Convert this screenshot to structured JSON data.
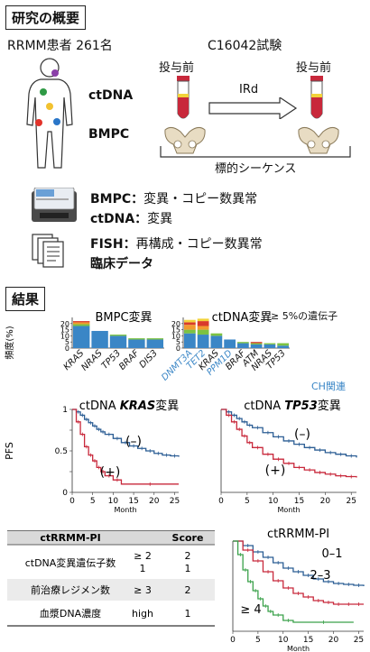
{
  "overview": {
    "heading": "研究の概要",
    "patients": "RRMM患者 261名",
    "trial": "C16042試験",
    "pre_left": "投与前",
    "pre_right": "投与前",
    "ctdna": "ctDNA",
    "bmpc": "BMPC",
    "treatment": "IRd",
    "sequencing": "標的シーケンス",
    "lines": [
      {
        "label": "BMPC：",
        "text": "変異・コピー数異常"
      },
      {
        "label": "ctDNA：",
        "text": "変異"
      },
      {
        "label": "FISH：",
        "text": "再構成・コピー数異常"
      },
      {
        "label": "臨床データ",
        "text": ""
      }
    ]
  },
  "results": {
    "heading": "結果",
    "freq_ylabel": "頻度(%)",
    "note": "≥ 5%の遺伝子",
    "ch_label": "CH関連",
    "colors": {
      "blue": "#3a86c6",
      "green": "#7cc242",
      "orange": "#f29a2e",
      "red": "#d93a2b",
      "yellow": "#f2d33a",
      "ch": "#3a86c6"
    },
    "bmpc_chart": {
      "type": "bar",
      "title": "BMPC変異",
      "categories": [
        "KRAS",
        "NRAS",
        "TP53",
        "BRAF",
        "DIS3"
      ],
      "ylim": [
        0,
        25
      ],
      "yticks": [
        0,
        5,
        10,
        15,
        20
      ],
      "stacks": [
        [
          18,
          1.5,
          1.5,
          1
        ],
        [
          14,
          0,
          0,
          0
        ],
        [
          10,
          1,
          0,
          0
        ],
        [
          7,
          1,
          0,
          0
        ],
        [
          7,
          1,
          0,
          0
        ]
      ]
    },
    "ctdna_chart": {
      "type": "bar",
      "title": "ctDNA変異",
      "categories": [
        "DNMT3A",
        "TET2",
        "KRAS",
        "PPM1D",
        "BRAF",
        "ATM",
        "NRAS",
        "TP53"
      ],
      "ch_flags": [
        true,
        true,
        false,
        true,
        false,
        false,
        false,
        false
      ],
      "ylim": [
        0,
        25
      ],
      "yticks": [
        0,
        5,
        10,
        15,
        20
      ],
      "stacks": [
        [
          12,
          3,
          4,
          2,
          2
        ],
        [
          11,
          4,
          3,
          4,
          2
        ],
        [
          10,
          2,
          0,
          0,
          0
        ],
        [
          7,
          0,
          0,
          0,
          0
        ],
        [
          4,
          1,
          0,
          0,
          0
        ],
        [
          3,
          1,
          0,
          1,
          0
        ],
        [
          3,
          1,
          0,
          0,
          0
        ],
        [
          2,
          2,
          0,
          0,
          0
        ]
      ]
    },
    "kras_km": {
      "type": "line",
      "title_prefix": "ctDNA ",
      "title_gene": "KRAS",
      "title_suffix": "変異",
      "ylabel": "PFS",
      "xlabel": "Month",
      "xticks": [
        0,
        5,
        10,
        15,
        20,
        25
      ],
      "yticks": [
        0,
        0.25,
        0.5,
        0.75,
        1
      ],
      "ytick_labels": [
        "0",
        "",
        "0.5",
        "",
        "1"
      ],
      "series": [
        {
          "label": "(–)",
          "color": "#2b5d94",
          "x": [
            0,
            1,
            2,
            3,
            4,
            5,
            6,
            7,
            8,
            10,
            12,
            14,
            16,
            18,
            20,
            22,
            24,
            26
          ],
          "y": [
            1,
            0.97,
            0.93,
            0.88,
            0.84,
            0.8,
            0.76,
            0.73,
            0.7,
            0.65,
            0.6,
            0.56,
            0.53,
            0.5,
            0.47,
            0.45,
            0.44,
            0.43
          ]
        },
        {
          "label": "(+)",
          "color": "#c8283b",
          "x": [
            0,
            1,
            2,
            3,
            4,
            5,
            6,
            7,
            8,
            10,
            12,
            26
          ],
          "y": [
            1,
            0.85,
            0.7,
            0.55,
            0.45,
            0.38,
            0.3,
            0.25,
            0.2,
            0.15,
            0.1,
            0.1
          ]
        }
      ]
    },
    "tp53_km": {
      "type": "line",
      "title_prefix": "ctDNA ",
      "title_gene": "TP53",
      "title_suffix": "変異",
      "xlabel": "Month",
      "xticks": [
        0,
        5,
        10,
        15,
        20,
        25
      ],
      "series": [
        {
          "label": "(–)",
          "color": "#2b5d94",
          "x": [
            0,
            1,
            2,
            3,
            4,
            5,
            6,
            8,
            10,
            12,
            14,
            16,
            18,
            20,
            22,
            24,
            26
          ],
          "y": [
            1,
            0.97,
            0.93,
            0.89,
            0.85,
            0.81,
            0.78,
            0.72,
            0.67,
            0.62,
            0.58,
            0.54,
            0.51,
            0.48,
            0.46,
            0.44,
            0.42
          ]
        },
        {
          "label": "(+)",
          "color": "#c8283b",
          "x": [
            0,
            1,
            2,
            3,
            4,
            5,
            6,
            8,
            10,
            12,
            14,
            16,
            18,
            20,
            22,
            24,
            26
          ],
          "y": [
            1,
            0.93,
            0.85,
            0.76,
            0.68,
            0.6,
            0.54,
            0.46,
            0.4,
            0.35,
            0.3,
            0.27,
            0.24,
            0.22,
            0.2,
            0.19,
            0.18
          ]
        }
      ]
    },
    "pi_km": {
      "type": "line",
      "title": "ctRRMM-PI",
      "xlabel": "Month",
      "xticks": [
        0,
        5,
        10,
        15,
        20,
        25
      ],
      "series": [
        {
          "label": "0–1",
          "color": "#2b5d94",
          "x": [
            0,
            2,
            4,
            6,
            8,
            10,
            12,
            14,
            16,
            18,
            20,
            22,
            24,
            26
          ],
          "y": [
            1,
            0.95,
            0.88,
            0.82,
            0.76,
            0.7,
            0.66,
            0.62,
            0.58,
            0.55,
            0.53,
            0.52,
            0.51,
            0.5
          ]
        },
        {
          "label": "2–3",
          "color": "#c8283b",
          "x": [
            0,
            2,
            4,
            6,
            8,
            10,
            12,
            14,
            16,
            18,
            20,
            22,
            24,
            26
          ],
          "y": [
            1,
            0.9,
            0.78,
            0.66,
            0.56,
            0.48,
            0.42,
            0.38,
            0.34,
            0.32,
            0.3,
            0.3,
            0.3,
            0.3
          ]
        },
        {
          "label": "≥ 4",
          "color": "#3aa14a",
          "x": [
            0,
            1,
            2,
            3,
            4,
            5,
            6,
            7,
            8,
            10,
            12,
            24
          ],
          "y": [
            1,
            0.85,
            0.68,
            0.55,
            0.45,
            0.36,
            0.28,
            0.22,
            0.18,
            0.12,
            0.1,
            0.1
          ]
        }
      ]
    },
    "pi_table": {
      "header": [
        "ctRRMM-PI",
        "",
        "Score"
      ],
      "rows": [
        {
          "name": "ctDNA変異遺伝子数",
          "cond1": "≥ 2",
          "score1": "2",
          "cond2": "1",
          "score2": "1"
        },
        {
          "name": "前治療レジメン数",
          "cond1": "≥ 3",
          "score1": "2"
        },
        {
          "name": "血漿DNA濃度",
          "cond1": "high",
          "score1": "1"
        }
      ]
    }
  }
}
